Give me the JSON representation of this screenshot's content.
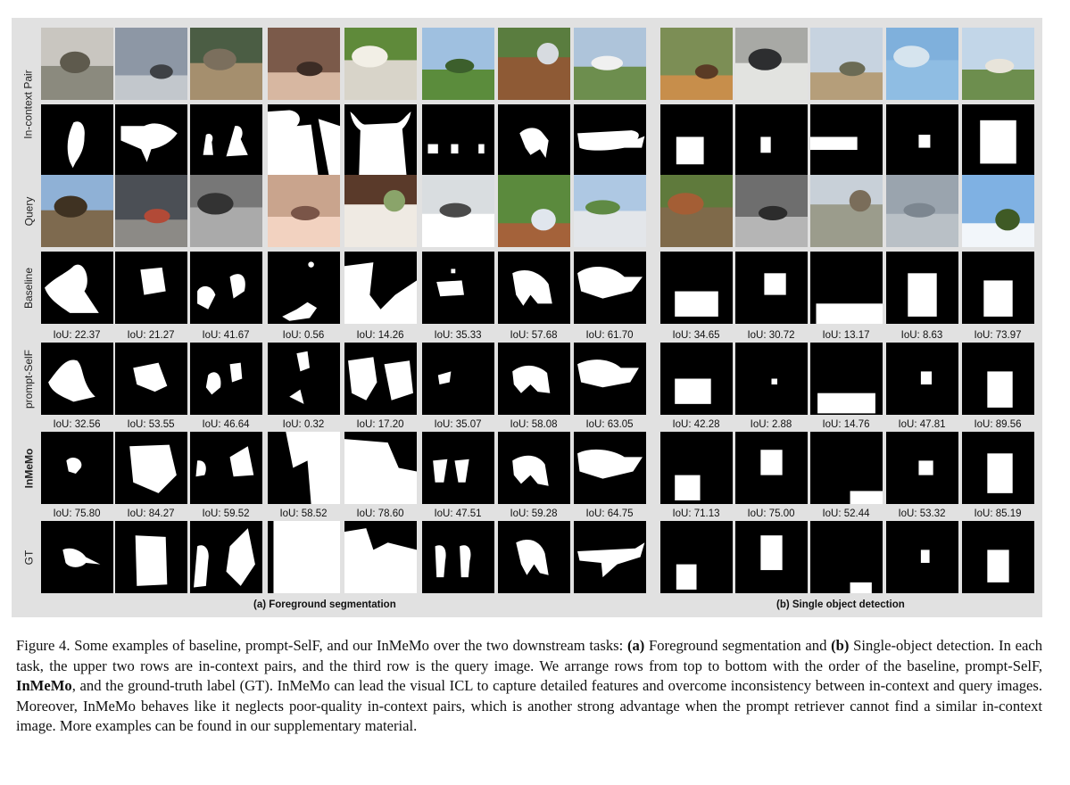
{
  "row_labels": {
    "in_context_pair": "In-context Pair",
    "query": "Query",
    "baseline": "Baseline",
    "prompt_self": "prompt-SelF",
    "inmemo": "InMeMo",
    "gt": "GT"
  },
  "panels": [
    {
      "id": "foreground-segmentation",
      "caption": "(a) Foreground segmentation",
      "iou": {
        "baseline": [
          "IoU: 22.37",
          "IoU: 21.27",
          "IoU: 41.67",
          "IoU: 0.56",
          "IoU: 14.26",
          "IoU: 35.33",
          "IoU: 57.68",
          "IoU: 61.70"
        ],
        "prompt_self": [
          "IoU: 32.56",
          "IoU: 53.55",
          "IoU: 46.64",
          "IoU: 0.32",
          "IoU: 17.20",
          "IoU: 35.07",
          "IoU: 58.08",
          "IoU: 63.05"
        ],
        "inmemo": [
          "IoU: 75.80",
          "IoU: 84.27",
          "IoU: 59.52",
          "IoU: 58.52",
          "IoU: 78.60",
          "IoU: 47.51",
          "IoU: 59.28",
          "IoU: 64.75"
        ]
      }
    },
    {
      "id": "single-object-detection",
      "caption": "(b) Single object detection",
      "iou": {
        "baseline": [
          "IoU: 34.65",
          "IoU: 30.72",
          "IoU: 13.17",
          "IoU: 8.63",
          "IoU: 73.97"
        ],
        "prompt_self": [
          "IoU: 42.28",
          "IoU: 2.88",
          "IoU: 14.76",
          "IoU: 47.81",
          "IoU: 89.56"
        ],
        "inmemo": [
          "IoU: 71.13",
          "IoU: 75.00",
          "IoU: 52.44",
          "IoU: 53.32",
          "IoU: 85.19"
        ]
      }
    }
  ],
  "caption": {
    "figure_label": "Figure 4.",
    "part1": " Some examples of baseline, prompt-SelF, and our InMeMo over the two downstream tasks: ",
    "a_label": "(a)",
    "part2": " Foreground segmentation and ",
    "b_label": "(b)",
    "part3": " Single-object detection. In each task, the upper two rows are in-context pairs, and the third row is the query image. We arrange rows from top to bottom with the order of the baseline, prompt-SelF, ",
    "inmemo_bold": "InMeMo",
    "part4": ", and the ground-truth label (GT). InMeMo can lead the visual ICL to capture detailed features and overcome inconsistency between in-context and query images. Moreover, InMeMo behaves like it neglects poor-quality in-context pairs, which is another strong advantage when the prompt retriever cannot find a similar in-context image. More examples can be found in our supplementary material."
  },
  "colors": {
    "panel_bg": "#e1e1e1",
    "mask_bg": "#000000",
    "mask_fg": "#ffffff"
  }
}
